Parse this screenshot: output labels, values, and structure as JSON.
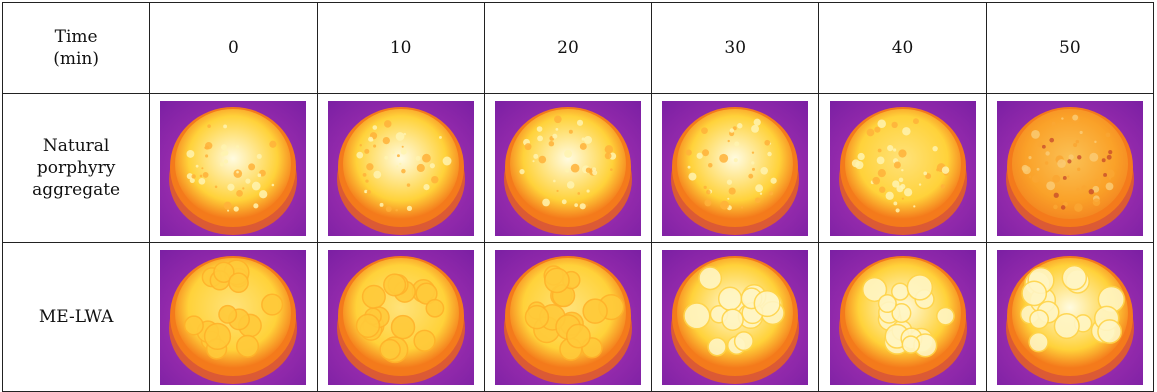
{
  "header": {
    "label_lines": [
      "Time",
      "(min)"
    ],
    "times": [
      "0",
      "10",
      "20",
      "30",
      "40",
      "50"
    ]
  },
  "rows": [
    {
      "label_lines": [
        "Natural",
        "porphyry",
        "aggregate"
      ],
      "images": [
        {
          "intensity": 1.0,
          "pattern": "speckle"
        },
        {
          "intensity": 1.0,
          "pattern": "speckle"
        },
        {
          "intensity": 0.98,
          "pattern": "speckle"
        },
        {
          "intensity": 0.92,
          "pattern": "speckle"
        },
        {
          "intensity": 0.86,
          "pattern": "speckle"
        },
        {
          "intensity": 0.62,
          "pattern": "speckle"
        }
      ]
    },
    {
      "label_lines": [
        "ME-LWA"
      ],
      "images": [
        {
          "intensity": 0.82,
          "pattern": "cells"
        },
        {
          "intensity": 0.82,
          "pattern": "cells"
        },
        {
          "intensity": 0.84,
          "pattern": "cells"
        },
        {
          "intensity": 1.0,
          "pattern": "cells"
        },
        {
          "intensity": 1.0,
          "pattern": "cells"
        },
        {
          "intensity": 1.0,
          "pattern": "cells"
        }
      ]
    }
  ],
  "colors": {
    "background_purple": "#7a1fa3",
    "background_violet": "#b93ab8",
    "rim_orange": "#f47a1b",
    "hot_yellow": "#ffd23a",
    "hottest_white": "#fffbe0"
  }
}
